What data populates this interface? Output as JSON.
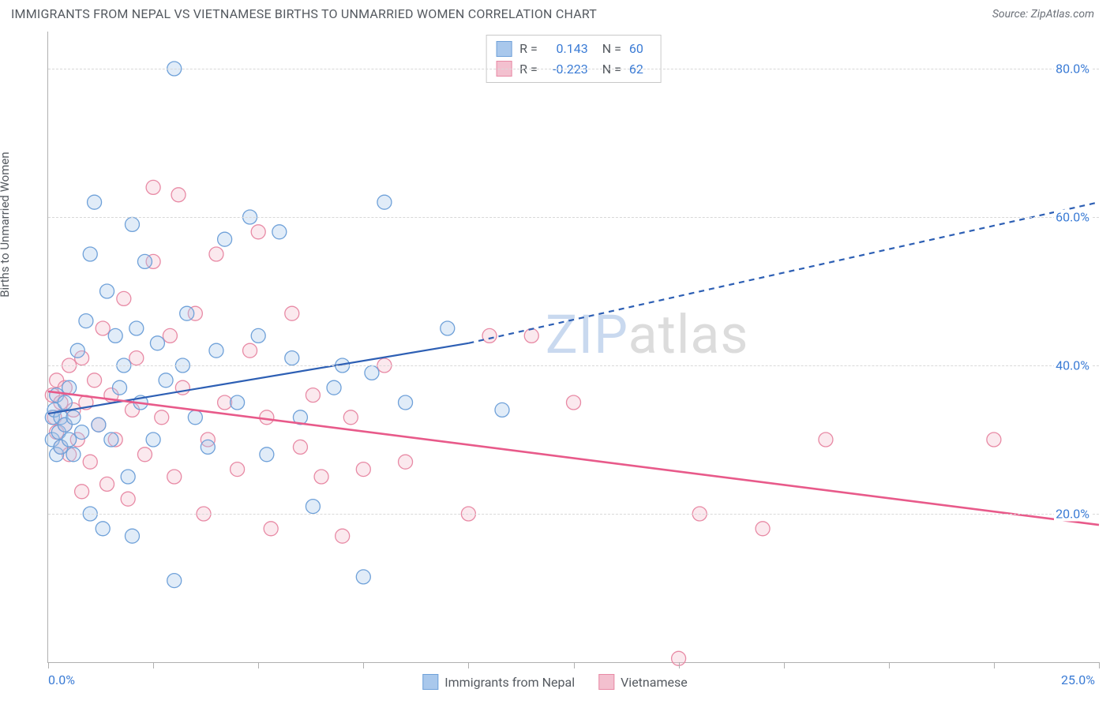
{
  "header": {
    "title": "IMMIGRANTS FROM NEPAL VS VIETNAMESE BIRTHS TO UNMARRIED WOMEN CORRELATION CHART",
    "source": "Source: ZipAtlas.com"
  },
  "watermark": {
    "part1": "ZIP",
    "part2": "atlas"
  },
  "chart": {
    "type": "scatter",
    "y_axis_label": "Births to Unmarried Women",
    "background_color": "#ffffff",
    "grid_color": "#d8d8d8",
    "axis_color": "#b0b0b0",
    "tick_label_color": "#3a7bd5",
    "text_color": "#555a60",
    "xlim": [
      0,
      25
    ],
    "ylim": [
      0,
      85
    ],
    "x_ticks": [
      0,
      2.5,
      5,
      7.5,
      10,
      12.5,
      15,
      17.5,
      20,
      22.5,
      25
    ],
    "x_tick_labels": [
      {
        "value": 0,
        "label": "0.0%"
      },
      {
        "value": 25,
        "label": "25.0%"
      }
    ],
    "y_ticks": [
      {
        "value": 20,
        "label": "20.0%"
      },
      {
        "value": 40,
        "label": "40.0%"
      },
      {
        "value": 60,
        "label": "60.0%"
      },
      {
        "value": 80,
        "label": "80.0%"
      }
    ],
    "marker_radius": 9,
    "marker_fill_opacity": 0.35,
    "marker_stroke_width": 1.3,
    "series_a": {
      "name": "Immigrants from Nepal",
      "color_fill": "#a9c8ec",
      "color_stroke": "#6fa1d9",
      "r_label": "R =",
      "r_value": "0.143",
      "n_label": "N =",
      "n_value": "60",
      "trend": {
        "color": "#2d5fb4",
        "width": 2.2,
        "solid": {
          "x1": 0,
          "y1": 33.5,
          "x2": 10,
          "y2": 43
        },
        "dashed": {
          "x1": 10,
          "y1": 43,
          "x2": 25,
          "y2": 62
        }
      },
      "points": [
        [
          0.1,
          33
        ],
        [
          0.1,
          30
        ],
        [
          0.15,
          34
        ],
        [
          0.2,
          28
        ],
        [
          0.2,
          36
        ],
        [
          0.25,
          31
        ],
        [
          0.3,
          33
        ],
        [
          0.3,
          29
        ],
        [
          0.4,
          32
        ],
        [
          0.4,
          35
        ],
        [
          0.5,
          30
        ],
        [
          0.5,
          37
        ],
        [
          0.6,
          33
        ],
        [
          0.6,
          28
        ],
        [
          0.7,
          42
        ],
        [
          0.8,
          31
        ],
        [
          0.9,
          46
        ],
        [
          1.0,
          20
        ],
        [
          1.0,
          55
        ],
        [
          1.1,
          62
        ],
        [
          1.2,
          32
        ],
        [
          1.3,
          18
        ],
        [
          1.4,
          50
        ],
        [
          1.5,
          30
        ],
        [
          1.6,
          44
        ],
        [
          1.7,
          37
        ],
        [
          1.8,
          40
        ],
        [
          1.9,
          25
        ],
        [
          2.0,
          59
        ],
        [
          2.0,
          17
        ],
        [
          2.1,
          45
        ],
        [
          2.2,
          35
        ],
        [
          2.3,
          54
        ],
        [
          2.5,
          30
        ],
        [
          2.6,
          43
        ],
        [
          2.8,
          38
        ],
        [
          3.0,
          80
        ],
        [
          3.0,
          11
        ],
        [
          3.2,
          40
        ],
        [
          3.3,
          47
        ],
        [
          3.5,
          33
        ],
        [
          3.8,
          29
        ],
        [
          4.0,
          42
        ],
        [
          4.2,
          57
        ],
        [
          4.5,
          35
        ],
        [
          4.8,
          60
        ],
        [
          5.0,
          44
        ],
        [
          5.2,
          28
        ],
        [
          5.5,
          58
        ],
        [
          5.8,
          41
        ],
        [
          6.0,
          33
        ],
        [
          6.3,
          21
        ],
        [
          6.8,
          37
        ],
        [
          7.0,
          40
        ],
        [
          7.5,
          11.5
        ],
        [
          7.7,
          39
        ],
        [
          8.0,
          62
        ],
        [
          8.5,
          35
        ],
        [
          9.5,
          45
        ],
        [
          10.8,
          34
        ]
      ]
    },
    "series_b": {
      "name": "Vietnamese",
      "color_fill": "#f3c0cf",
      "color_stroke": "#e88aa5",
      "r_label": "R =",
      "r_value": "-0.223",
      "n_label": "N =",
      "n_value": "62",
      "trend": {
        "color": "#e85a8a",
        "width": 2.6,
        "solid": {
          "x1": 0,
          "y1": 36.5,
          "x2": 25,
          "y2": 18.5
        }
      },
      "points": [
        [
          0.1,
          36
        ],
        [
          0.15,
          33
        ],
        [
          0.2,
          38
        ],
        [
          0.2,
          31
        ],
        [
          0.3,
          35
        ],
        [
          0.3,
          29
        ],
        [
          0.4,
          37
        ],
        [
          0.4,
          32
        ],
        [
          0.5,
          28
        ],
        [
          0.5,
          40
        ],
        [
          0.6,
          34
        ],
        [
          0.7,
          30
        ],
        [
          0.8,
          23
        ],
        [
          0.8,
          41
        ],
        [
          0.9,
          35
        ],
        [
          1.0,
          27
        ],
        [
          1.1,
          38
        ],
        [
          1.2,
          32
        ],
        [
          1.3,
          45
        ],
        [
          1.4,
          24
        ],
        [
          1.5,
          36
        ],
        [
          1.6,
          30
        ],
        [
          1.8,
          49
        ],
        [
          1.9,
          22
        ],
        [
          2.0,
          34
        ],
        [
          2.1,
          41
        ],
        [
          2.3,
          28
        ],
        [
          2.5,
          54
        ],
        [
          2.5,
          64
        ],
        [
          2.7,
          33
        ],
        [
          2.9,
          44
        ],
        [
          3.0,
          25
        ],
        [
          3.1,
          63
        ],
        [
          3.2,
          37
        ],
        [
          3.5,
          47
        ],
        [
          3.7,
          20
        ],
        [
          3.8,
          30
        ],
        [
          4.0,
          55
        ],
        [
          4.2,
          35
        ],
        [
          4.5,
          26
        ],
        [
          4.8,
          42
        ],
        [
          5.0,
          58
        ],
        [
          5.2,
          33
        ],
        [
          5.3,
          18
        ],
        [
          5.8,
          47
        ],
        [
          6.0,
          29
        ],
        [
          6.3,
          36
        ],
        [
          6.5,
          25
        ],
        [
          7.0,
          17
        ],
        [
          7.2,
          33
        ],
        [
          7.5,
          26
        ],
        [
          8.0,
          40
        ],
        [
          8.5,
          27
        ],
        [
          10.0,
          20
        ],
        [
          10.5,
          44
        ],
        [
          11.5,
          44
        ],
        [
          12.5,
          35
        ],
        [
          15.0,
          0.5
        ],
        [
          15.5,
          20
        ],
        [
          17.0,
          18
        ],
        [
          18.5,
          30
        ],
        [
          22.5,
          30
        ]
      ]
    }
  },
  "legend_bottom": {
    "item1": "Immigrants from Nepal",
    "item2": "Vietnamese"
  }
}
